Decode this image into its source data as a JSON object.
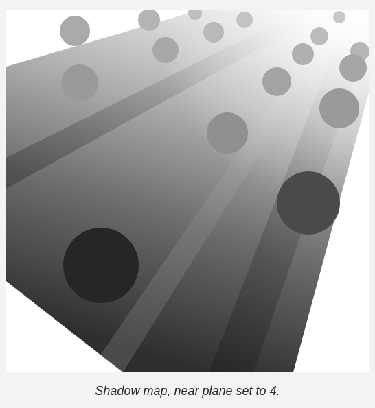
{
  "figure": {
    "caption": "Shadow map, near plane set to 4."
  }
}
